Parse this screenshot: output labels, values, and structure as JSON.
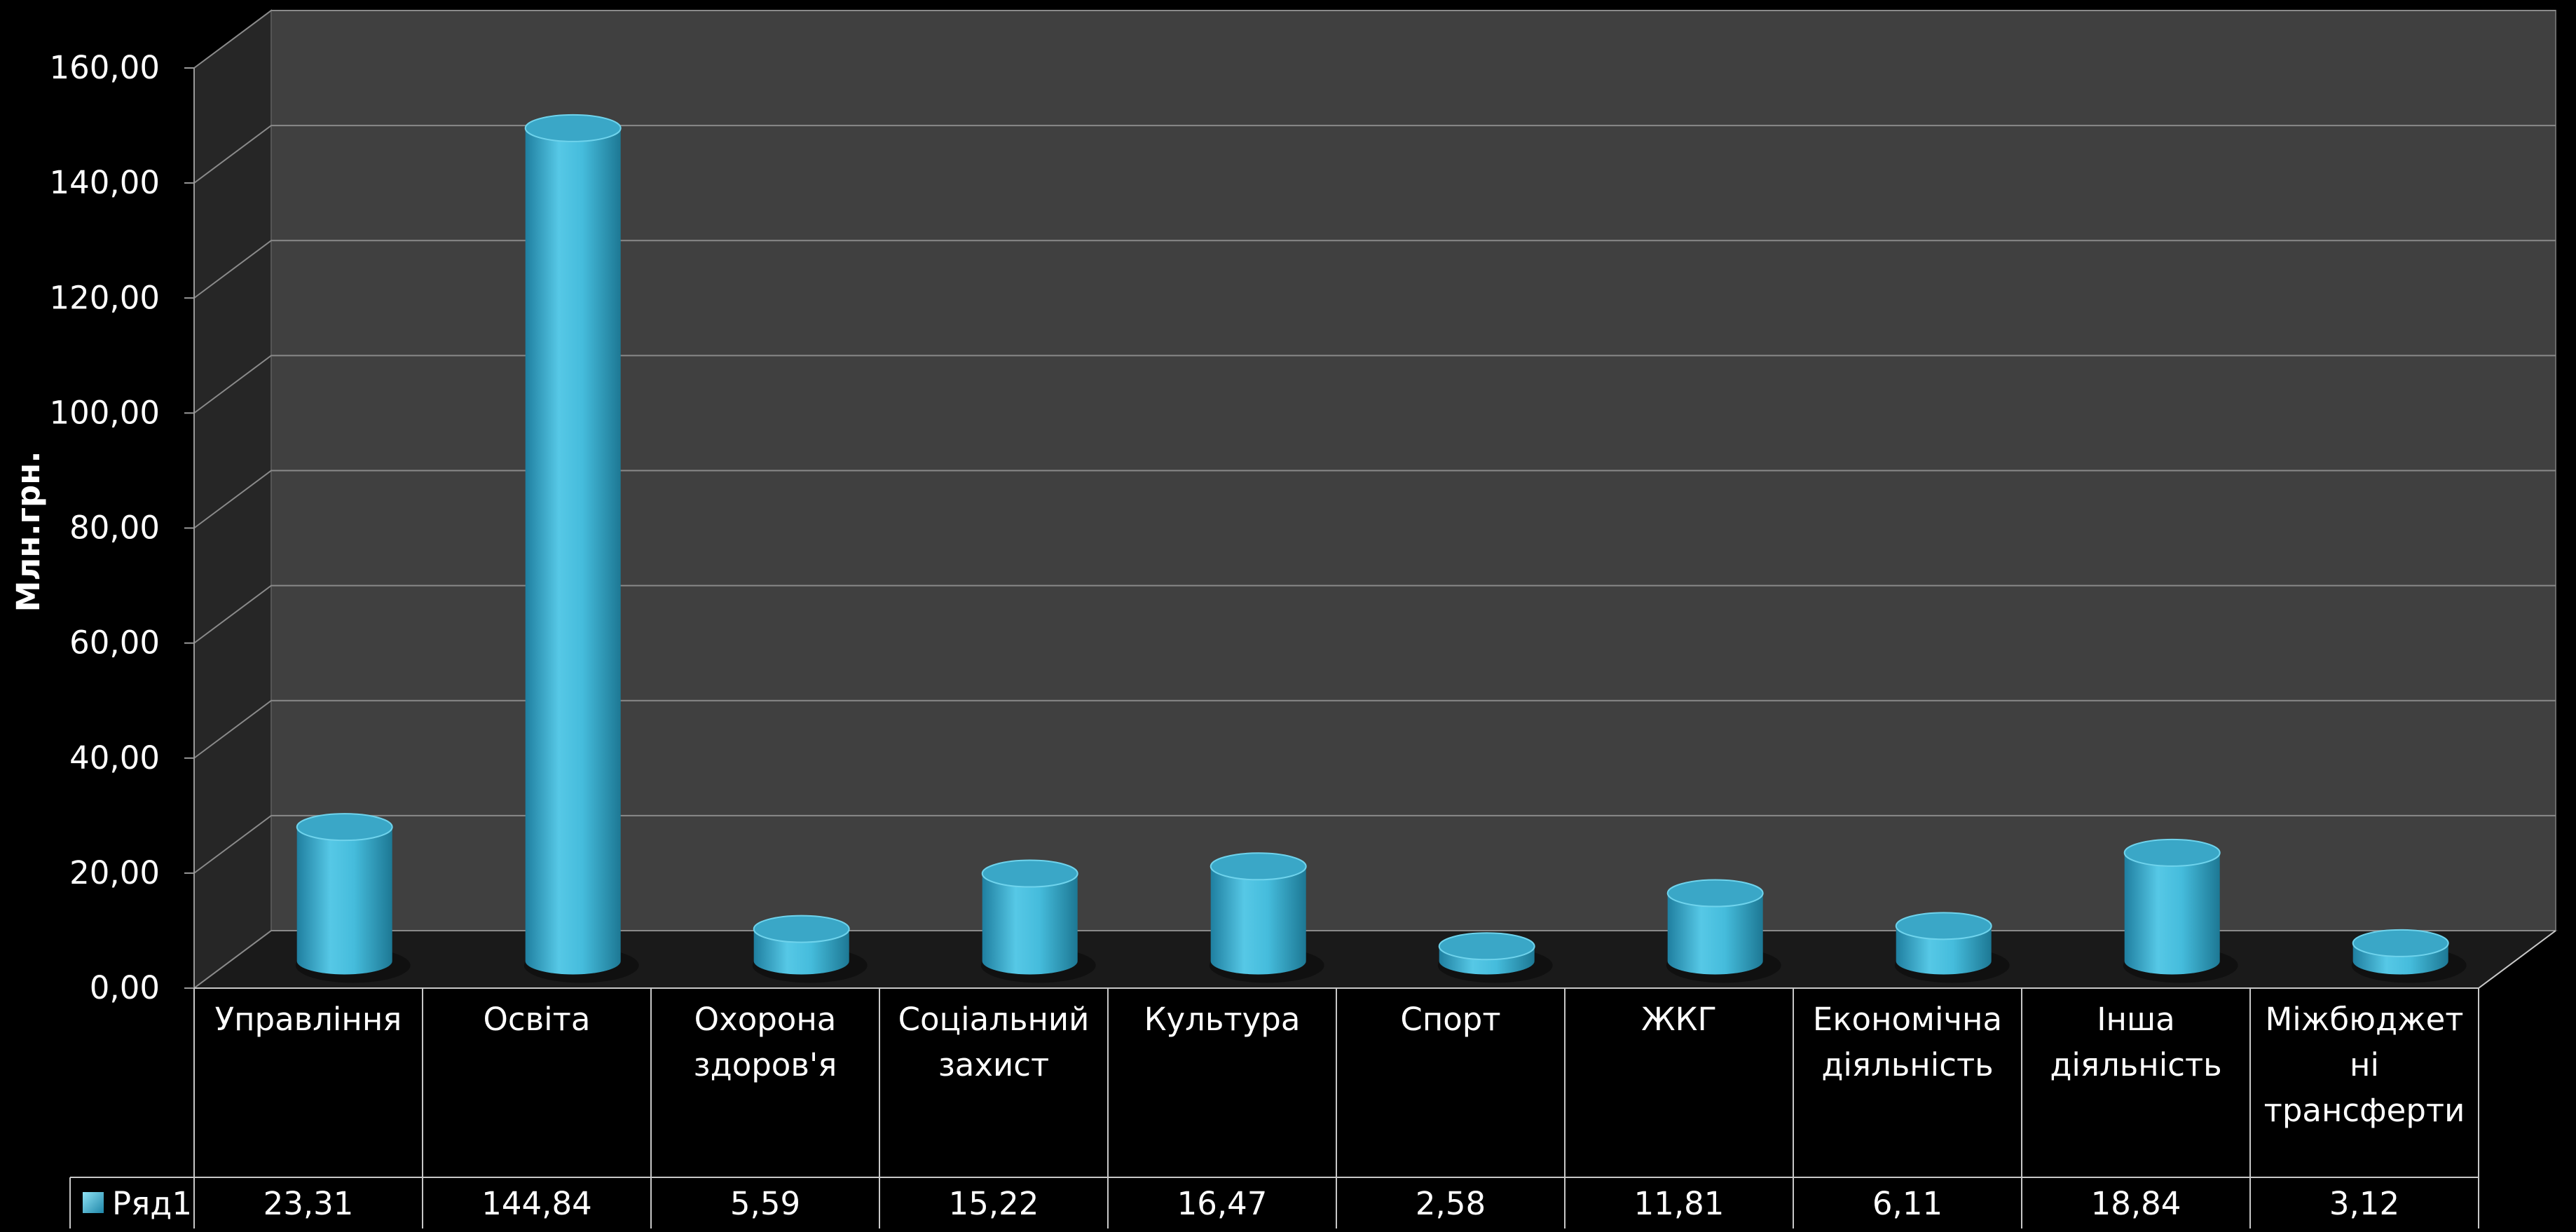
{
  "chart_data": {
    "type": "bar",
    "ylabel": "Млн.грн.",
    "ylim": [
      0,
      160
    ],
    "yticks": [
      "0,00",
      "20,00",
      "40,00",
      "60,00",
      "80,00",
      "100,00",
      "120,00",
      "140,00",
      "160,00"
    ],
    "categories": [
      [
        "Управління"
      ],
      [
        "Освіта"
      ],
      [
        "Охорона",
        "здоров'я"
      ],
      [
        "Соціальний",
        "захист"
      ],
      [
        "Культура"
      ],
      [
        "Спорт"
      ],
      [
        "ЖКГ"
      ],
      [
        "Економічна",
        "діяльність"
      ],
      [
        "Інша",
        "діяльність"
      ],
      [
        "Міжбюджет",
        "ні",
        "трансферти"
      ]
    ],
    "series": [
      {
        "name": "Ряд1",
        "values": [
          23.31,
          144.84,
          5.59,
          15.22,
          16.47,
          2.58,
          11.81,
          6.11,
          18.84,
          3.12
        ],
        "labels": [
          "23,31",
          "144,84",
          "5,59",
          "15,22",
          "16,47",
          "2,58",
          "11,81",
          "6,11",
          "18,84",
          "3,12"
        ],
        "color": "#3bb6d6"
      }
    ],
    "grid": true,
    "legend": "data-table",
    "colors": {
      "background": "#000000",
      "back_wall": "#404040",
      "side_wall": "#262626",
      "floor": "#1a1a1a",
      "grid": "#8a8a8a"
    }
  }
}
